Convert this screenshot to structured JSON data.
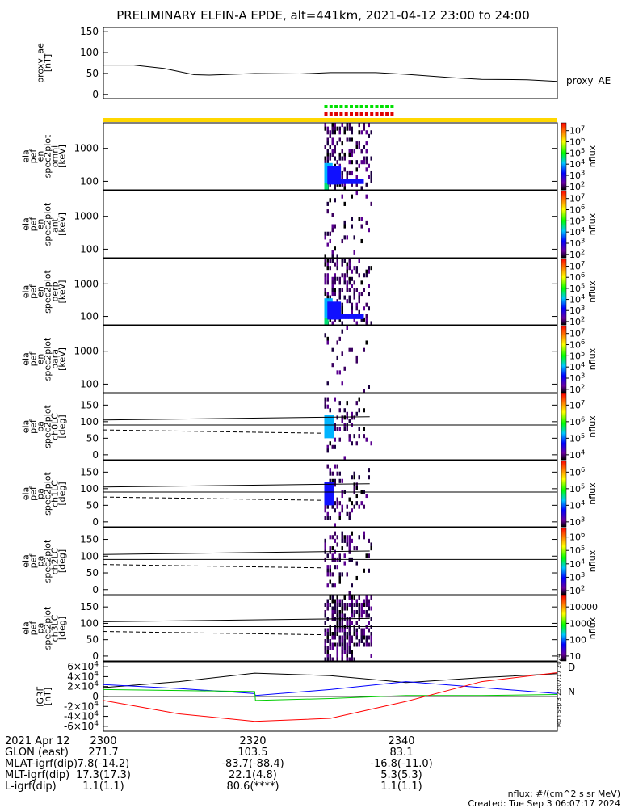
{
  "title": "PRELIMINARY ELFIN-A EPDE, alt=441km, 2021-04-12 23:00 to 24:00",
  "footer": {
    "units": "nflux: #/(cm^2 s sr MeV)",
    "created": "Created: Tue Sep  3 06:07:17 2024",
    "side_stamp": "Mon Sep  3 23:07:17 2024"
  },
  "orbit_table": {
    "labels": [
      "2021 Apr 12",
      "GLON (east)",
      "MLAT-igrf(dip)",
      "MLT-igrf(dip)",
      "L-igrf(dip)"
    ],
    "columns": [
      {
        "time": "2300",
        "values": [
          "271.7",
          "7.8(-14.2)",
          "17.3(17.3)",
          "1.1(1.1)"
        ]
      },
      {
        "time": "2320",
        "values": [
          "103.5",
          "-83.7(-88.4)",
          "22.1(4.8)",
          "80.6(****)"
        ]
      },
      {
        "time": "2340",
        "values": [
          "83.1",
          "-16.8(-11.0)",
          "5.3(5.3)",
          "1.1(1.1)"
        ]
      }
    ]
  },
  "colors": {
    "ae_line": "#000000",
    "state_bar": "#ffd700",
    "marker_green": "#00e000",
    "marker_red": "#e00000",
    "igrf_x": "#0000ff",
    "igrf_y": "#00cc00",
    "igrf_z": "#ff0000",
    "igrf_mag": "#000000"
  },
  "chart_data": [
    {
      "type": "line",
      "panel": "proxy_ae",
      "ylabel": "proxy_ae\n[nT]",
      "legend": [
        "proxy_AE"
      ],
      "ylim": [
        -10,
        160
      ],
      "yticks": [
        "0",
        "50",
        "100",
        "150"
      ],
      "x_minutes": [
        0,
        4,
        8,
        12,
        14,
        20,
        26,
        30,
        36,
        40,
        46,
        50,
        56,
        60
      ],
      "values": [
        70,
        70,
        62,
        47,
        46,
        50,
        49,
        52,
        52,
        48,
        40,
        36,
        35,
        31
      ]
    },
    {
      "type": "heatmap",
      "panel": "omni",
      "ylabel": "ela\npef\nen\nspec2plot\nomni\n[keV]",
      "yscale": "log",
      "yticks": [
        "100",
        "1000"
      ],
      "zlabel": "nflux",
      "zticks": [
        "10^2",
        "10^3",
        "10^4",
        "10^5",
        "10^6",
        "10^7"
      ],
      "data_window_minutes": [
        29.2,
        35.4
      ],
      "peak_at_low_energy": true
    },
    {
      "type": "heatmap",
      "panel": "anti",
      "ylabel": "ela\npef\nen\nspec2plot\nanti\n[keV]",
      "yscale": "log",
      "yticks": [
        "100",
        "1000"
      ],
      "zlabel": "nflux",
      "zticks": [
        "10^2",
        "10^3",
        "10^4",
        "10^5",
        "10^6",
        "10^7"
      ],
      "data_window_minutes": [
        29.2,
        35.4
      ]
    },
    {
      "type": "heatmap",
      "panel": "perp",
      "ylabel": "ela\npef\nen\nspec2plot\nperp\n[keV]",
      "yscale": "log",
      "yticks": [
        "100",
        "1000"
      ],
      "zlabel": "nflux",
      "zticks": [
        "10^2",
        "10^3",
        "10^4",
        "10^5",
        "10^6",
        "10^7"
      ],
      "data_window_minutes": [
        29.2,
        35.4
      ],
      "peak_at_low_energy": true
    },
    {
      "type": "heatmap",
      "panel": "para",
      "ylabel": "ela\npef\nen\nspec2plot\npara\n[keV]",
      "yscale": "log",
      "yticks": [
        "100",
        "1000"
      ],
      "zlabel": "nflux",
      "zticks": [
        "10^2",
        "10^3",
        "10^4",
        "10^5",
        "10^6",
        "10^7"
      ],
      "data_window_minutes": [
        29.2,
        35.4
      ]
    },
    {
      "type": "heatmap",
      "panel": "ch0LC",
      "ylabel": "ela\npef\npa\nspec2plot\nch0LC\n[deg]",
      "ylim": [
        0,
        180
      ],
      "yticks": [
        "0",
        "50",
        "100",
        "150"
      ],
      "zlabel": "nflux",
      "zticks": [
        "10^4",
        "10^5",
        "10^6",
        "10^7"
      ],
      "loss_cone_deg": [
        75,
        65
      ],
      "anti_loss_cone_deg": [
        105,
        115
      ],
      "ninety_deg": 90
    },
    {
      "type": "heatmap",
      "panel": "ch1LC",
      "ylabel": "ela\npef\npa\nspec2plot\nch1LC\n[deg]",
      "ylim": [
        0,
        180
      ],
      "yticks": [
        "0",
        "50",
        "100",
        "150"
      ],
      "zlabel": "nflux",
      "zticks": [
        "10^3",
        "10^4",
        "10^5",
        "10^6"
      ],
      "loss_cone_deg": [
        75,
        65
      ],
      "anti_loss_cone_deg": [
        105,
        115
      ],
      "ninety_deg": 90
    },
    {
      "type": "heatmap",
      "panel": "ch2LC",
      "ylabel": "ela\npef\npa\nspec2plot\nch2LC\n[deg]",
      "ylim": [
        0,
        180
      ],
      "yticks": [
        "0",
        "50",
        "100",
        "150"
      ],
      "zlabel": "nflux",
      "zticks": [
        "10^2",
        "10^3",
        "10^4",
        "10^5",
        "10^6"
      ],
      "loss_cone_deg": [
        75,
        65
      ],
      "anti_loss_cone_deg": [
        105,
        115
      ],
      "ninety_deg": 90
    },
    {
      "type": "heatmap",
      "panel": "ch3LC",
      "ylabel": "ela\npef\npa\nspec2plot\nch3LC\n[deg]",
      "ylim": [
        0,
        180
      ],
      "yticks": [
        "0",
        "50",
        "100",
        "150"
      ],
      "zlabel": "nflux",
      "zticks": [
        "10",
        "100",
        "1000",
        "10000"
      ],
      "loss_cone_deg": [
        75,
        65
      ],
      "anti_loss_cone_deg": [
        105,
        115
      ],
      "ninety_deg": 90
    },
    {
      "type": "line",
      "panel": "igrf",
      "ylabel": "IGRF\n[nT]",
      "ylim": [
        -70000,
        70000
      ],
      "yticks": [
        "-6×10^4",
        "-4×10^4",
        "-2×10^4",
        "0",
        "2×10^4",
        "4×10^4",
        "6×10^4"
      ],
      "legend": [
        "D",
        "N"
      ],
      "series": [
        {
          "name": "",
          "color": "#000000",
          "x": [
            0,
            10,
            20,
            30,
            40,
            50,
            60
          ],
          "values": [
            18000,
            30000,
            47000,
            42000,
            28000,
            38000,
            46000
          ]
        },
        {
          "name": "",
          "color": "#0000ff",
          "x": [
            0,
            10,
            20,
            20.1,
            30,
            40,
            50,
            60
          ],
          "values": [
            24000,
            16000,
            6000,
            2000,
            14000,
            30000,
            18000,
            6000
          ]
        },
        {
          "name": "",
          "color": "#00cc00",
          "x": [
            0,
            10,
            20,
            20.1,
            30,
            40,
            50,
            60
          ],
          "values": [
            14000,
            12000,
            10000,
            -8000,
            -4000,
            2000,
            2000,
            4000
          ]
        },
        {
          "name": "",
          "color": "#ff0000",
          "x": [
            0,
            10,
            20,
            30,
            40,
            50,
            60
          ],
          "values": [
            -8000,
            -35000,
            -50000,
            -44000,
            -10000,
            30000,
            48000
          ]
        }
      ]
    }
  ]
}
